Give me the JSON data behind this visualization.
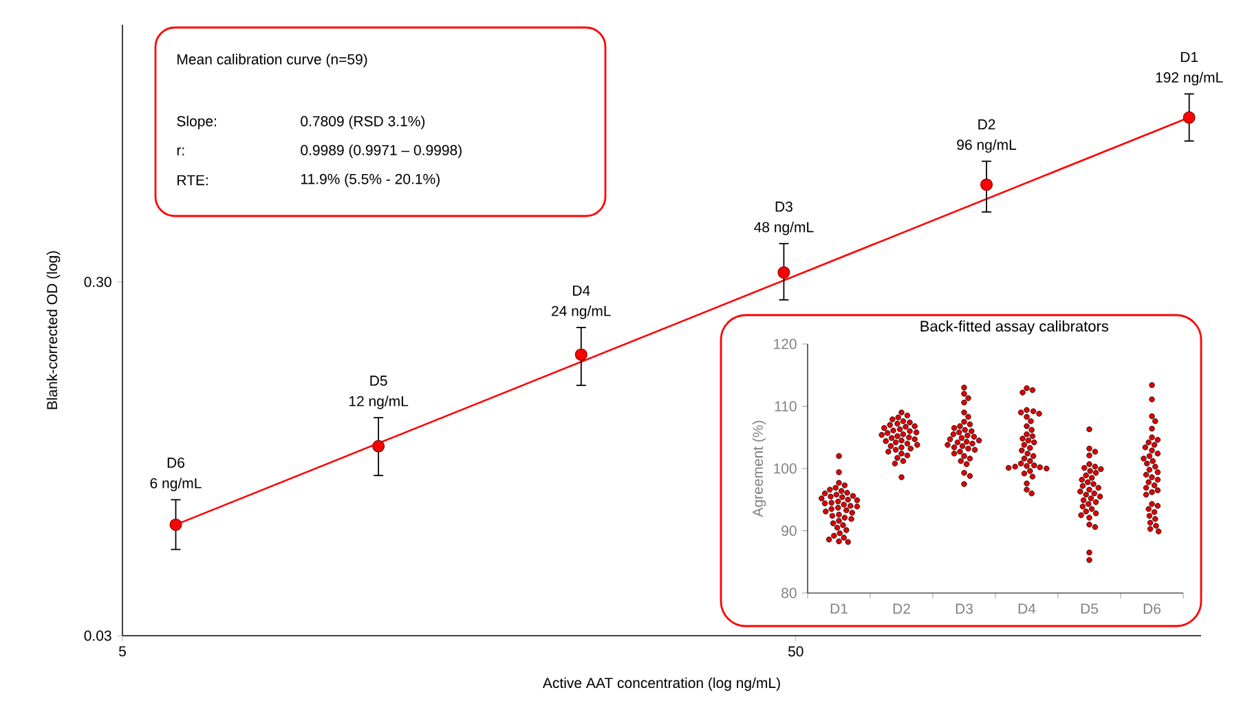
{
  "chart_data": [
    {
      "type": "scatter",
      "xlabel": "Active AAT concentration (log ng/mL)",
      "ylabel": "Blank-corrected OD (log)",
      "log": "xy",
      "xlim": [
        5,
        200
      ],
      "ylim": [
        0.03,
        1.6
      ],
      "xticks": [
        5,
        50
      ],
      "yticks": [
        0.03,
        {
          "value": 0.3,
          "label": "0.30"
        }
      ],
      "series": [
        {
          "type": "scatter",
          "marker": "circle",
          "color": "#ff0000",
          "x": [
            6,
            12,
            24,
            48,
            96,
            192
          ],
          "values": [
            0.0618,
            0.103,
            0.187,
            0.319,
            0.565,
            0.875
          ],
          "errors": [
            [
              0.0526,
              0.0727
            ],
            [
              0.0851,
              0.124
            ],
            [
              0.153,
              0.223
            ],
            [
              0.267,
              0.385
            ],
            [
              0.473,
              0.658
            ],
            [
              0.751,
              1.02
            ]
          ]
        },
        {
          "type": "line",
          "marker": "none",
          "color": "#ff0000",
          "x": [
            6,
            192
          ],
          "values": [
            0.0618,
            0.875
          ]
        }
      ],
      "annotations": [
        "D6",
        {
          "text": "6 ng/mL",
          "x": 6,
          "y": 0.0618
        },
        "D5",
        {
          "text": "12 ng/mL",
          "x": 12,
          "y": 0.103
        },
        "D4",
        {
          "text": "24 ng/mL",
          "x": 24,
          "y": 0.187
        },
        "D3",
        {
          "text": "48 ng/mL",
          "x": 48,
          "y": 0.319
        },
        "D2",
        {
          "text": "96 ng/mL",
          "x": 96,
          "y": 0.565
        },
        "D1",
        {
          "text": "192 ng/mL",
          "x": 192,
          "y": 0.875
        },
        "Mean calibration curve (n=59)",
        "Slope:",
        "0.7809 (RSD 3.1%)",
        "r:",
        "0.9989 (0.9971 – 0.9998)",
        "RTE:",
        "11.9% (5.5% - 20.1%)"
      ]
    },
    {
      "type": "scatter",
      "title": "Back-fitted assay calibrators",
      "ylabel": "Agreement (%)",
      "categories": [
        "D1",
        "D2",
        "D3",
        "D4",
        "D5",
        "D6"
      ],
      "ylim": [
        80,
        120
      ],
      "yticks": [
        80,
        90,
        100,
        110,
        120
      ],
      "series": [
        {
          "color": "#e00000",
          "marker": "circle",
          "x": [
            "D1",
            "D1",
            "D1",
            "D1",
            "D1",
            "D1",
            "D1",
            "D1",
            "D1",
            "D1",
            "D1",
            "D1",
            "D1",
            "D1",
            "D1",
            "D1",
            "D1",
            "D1",
            "D1",
            "D1",
            "D1",
            "D1",
            "D1",
            "D1",
            "D1",
            "D1",
            "D1",
            "D1",
            "D1",
            "D1",
            "D1",
            "D1",
            "D1",
            "D1",
            "D1",
            "D1",
            "D1",
            "D1",
            "D1",
            "D1",
            "D1",
            "D1"
          ],
          "values": [
            102,
            99.4,
            97.7,
            97.3,
            96.9,
            96.6,
            96.4,
            96.1,
            96,
            95.8,
            95.6,
            95.5,
            95.4,
            95.2,
            95,
            94.9,
            94.7,
            94.5,
            94.4,
            94.2,
            94,
            93.9,
            93.7,
            93.5,
            93.3,
            93.1,
            92.9,
            92.6,
            92.4,
            92.1,
            91.9,
            91.6,
            91.2,
            90.9,
            90.5,
            90.1,
            89.6,
            89.2,
            88.9,
            88.6,
            88.3,
            88.2
          ]
        },
        {
          "color": "#e00000",
          "marker": "circle",
          "x": [
            "D2",
            "D2",
            "D2",
            "D2",
            "D2",
            "D2",
            "D2",
            "D2",
            "D2",
            "D2",
            "D2",
            "D2",
            "D2",
            "D2",
            "D2",
            "D2",
            "D2",
            "D2",
            "D2",
            "D2",
            "D2",
            "D2",
            "D2",
            "D2",
            "D2",
            "D2",
            "D2",
            "D2",
            "D2",
            "D2",
            "D2",
            "D2",
            "D2",
            "D2",
            "D2",
            "D2",
            "D2",
            "D2"
          ],
          "values": [
            109,
            108.5,
            108.2,
            107.9,
            107.6,
            107.4,
            107.2,
            107,
            106.8,
            106.7,
            106.5,
            106.3,
            106.1,
            106,
            105.8,
            105.7,
            105.5,
            105.4,
            105.2,
            105,
            104.9,
            104.7,
            104.5,
            104.4,
            104.2,
            104,
            103.8,
            103.6,
            103.4,
            103.2,
            103,
            102.7,
            102.4,
            102.1,
            101.7,
            101.2,
            100.8,
            98.6
          ]
        },
        {
          "color": "#e00000",
          "marker": "circle",
          "x": [
            "D3",
            "D3",
            "D3",
            "D3",
            "D3",
            "D3",
            "D3",
            "D3",
            "D3",
            "D3",
            "D3",
            "D3",
            "D3",
            "D3",
            "D3",
            "D3",
            "D3",
            "D3",
            "D3",
            "D3",
            "D3",
            "D3",
            "D3",
            "D3",
            "D3",
            "D3",
            "D3",
            "D3",
            "D3",
            "D3",
            "D3",
            "D3",
            "D3",
            "D3",
            "D3",
            "D3"
          ],
          "values": [
            113,
            112,
            111.3,
            110.6,
            109,
            108.3,
            107.5,
            107.1,
            106.8,
            106.5,
            106.2,
            106,
            105.8,
            105.5,
            105.3,
            105.1,
            104.9,
            104.7,
            104.5,
            104.3,
            104.2,
            104,
            103.8,
            103.6,
            103.4,
            103.2,
            103,
            102.7,
            102.4,
            102,
            101.6,
            101.2,
            100.7,
            99.3,
            98.8,
            97.5
          ]
        },
        {
          "color": "#e00000",
          "marker": "circle",
          "x": [
            "D4",
            "D4",
            "D4",
            "D4",
            "D4",
            "D4",
            "D4",
            "D4",
            "D4",
            "D4",
            "D4",
            "D4",
            "D4",
            "D4",
            "D4",
            "D4",
            "D4",
            "D4",
            "D4",
            "D4",
            "D4",
            "D4",
            "D4",
            "D4",
            "D4",
            "D4",
            "D4",
            "D4",
            "D4",
            "D4",
            "D4",
            "D4",
            "D4",
            "D4",
            "D4",
            "D4"
          ],
          "values": [
            112.9,
            112.6,
            112.2,
            109.4,
            109.2,
            109,
            108.8,
            108.3,
            107.6,
            106.8,
            106.2,
            105.5,
            105.2,
            104.8,
            104.5,
            104.2,
            103.8,
            103.3,
            102.9,
            102.4,
            102,
            101.6,
            101.2,
            100.8,
            100.5,
            100.4,
            100.3,
            100.2,
            100.1,
            100,
            99.6,
            99.2,
            98.7,
            97.6,
            96.6,
            96
          ]
        },
        {
          "color": "#e00000",
          "marker": "circle",
          "x": [
            "D5",
            "D5",
            "D5",
            "D5",
            "D5",
            "D5",
            "D5",
            "D5",
            "D5",
            "D5",
            "D5",
            "D5",
            "D5",
            "D5",
            "D5",
            "D5",
            "D5",
            "D5",
            "D5",
            "D5",
            "D5",
            "D5",
            "D5",
            "D5",
            "D5",
            "D5",
            "D5",
            "D5",
            "D5",
            "D5",
            "D5",
            "D5",
            "D5",
            "D5",
            "D5",
            "D5"
          ],
          "values": [
            106.3,
            103.2,
            102.7,
            102.1,
            100.7,
            100.3,
            100.1,
            99.9,
            99.6,
            99.3,
            98.9,
            98.5,
            98.2,
            97.8,
            97.5,
            97.2,
            96.9,
            96.6,
            96.3,
            96,
            95.8,
            95.5,
            95.2,
            94.9,
            94.6,
            94.3,
            93.9,
            93.5,
            93.1,
            92.8,
            92.5,
            92.1,
            91,
            90.6,
            86.5,
            85.3
          ]
        },
        {
          "color": "#e00000",
          "marker": "circle",
          "x": [
            "D6",
            "D6",
            "D6",
            "D6",
            "D6",
            "D6",
            "D6",
            "D6",
            "D6",
            "D6",
            "D6",
            "D6",
            "D6",
            "D6",
            "D6",
            "D6",
            "D6",
            "D6",
            "D6",
            "D6",
            "D6",
            "D6",
            "D6",
            "D6",
            "D6",
            "D6",
            "D6",
            "D6",
            "D6",
            "D6",
            "D6",
            "D6",
            "D6",
            "D6",
            "D6",
            "D6",
            "D6",
            "D6"
          ],
          "values": [
            113.4,
            111.1,
            108.4,
            107.6,
            106.4,
            105,
            104.6,
            104.2,
            103.8,
            103.4,
            102.9,
            102.4,
            102,
            101.6,
            101.2,
            100.8,
            100.3,
            99.8,
            99.4,
            99,
            98.6,
            98.2,
            97.8,
            97.3,
            96.9,
            96.5,
            96.2,
            95.8,
            94.3,
            94,
            93.5,
            93,
            92.4,
            91.9,
            91.3,
            90.8,
            90.3,
            89.9
          ]
        }
      ]
    }
  ]
}
